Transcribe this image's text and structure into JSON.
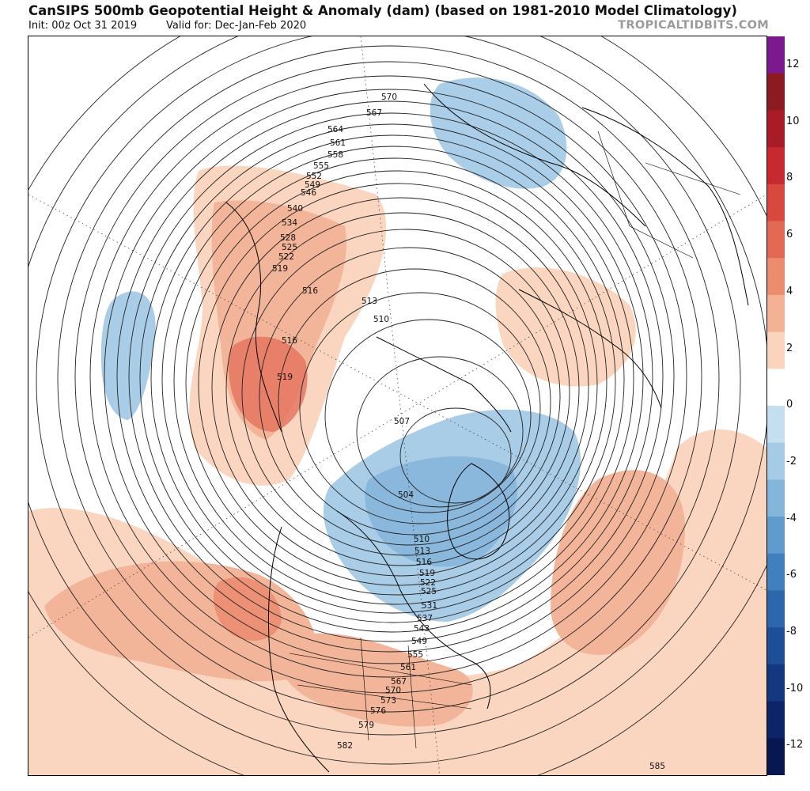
{
  "header": {
    "title": "CanSIPS 500mb Geopotential Height & Anomaly (dam) (based on 1981-2010 Model Climatology)",
    "init": "Init: 00z Oct 31 2019",
    "valid": "Valid for: Dec-Jan-Feb 2020",
    "brand": "TROPICALTIDBITS.COM"
  },
  "map": {
    "projection": "north-polar-stereographic",
    "contour_labels": [
      "570",
      "567",
      "564",
      "561",
      "558",
      "555",
      "552",
      "549",
      "546",
      "540",
      "534",
      "528",
      "525",
      "522",
      "519",
      "516",
      "513",
      "510",
      "516",
      "519",
      "507",
      "504",
      "510",
      "513",
      "516",
      "519",
      "522",
      "525",
      "531",
      "537",
      "543",
      "549",
      "555",
      "561",
      "567",
      "570",
      "573",
      "576",
      "579",
      "582",
      "585"
    ],
    "anomaly_regions": [
      {
        "region": "western-pacific-arctic",
        "sign": "positive"
      },
      {
        "region": "north-pacific-east",
        "sign": "negative"
      },
      {
        "region": "siberia-north",
        "sign": "negative"
      },
      {
        "region": "scandinavia",
        "sign": "positive"
      },
      {
        "region": "canada-greenland",
        "sign": "negative"
      },
      {
        "region": "atlantic-north-america-south",
        "sign": "positive"
      }
    ]
  },
  "colorbar": {
    "ticks": [
      "12",
      "10",
      "8",
      "6",
      "4",
      "2",
      "0",
      "-2",
      "-4",
      "-6",
      "-8",
      "-10",
      "-12"
    ],
    "colors": [
      "#7a1a8e",
      "#8b1a22",
      "#a81c28",
      "#c62a30",
      "#d8483e",
      "#e26a55",
      "#eb8c6e",
      "#f3b294",
      "#fad4bd",
      "#ffffff",
      "#c6dff0",
      "#a5cbe6",
      "#84b5db",
      "#5f9bcc",
      "#3f80bd",
      "#2b67aa",
      "#1c4f95",
      "#143880",
      "#0d2467",
      "#08174f"
    ]
  }
}
